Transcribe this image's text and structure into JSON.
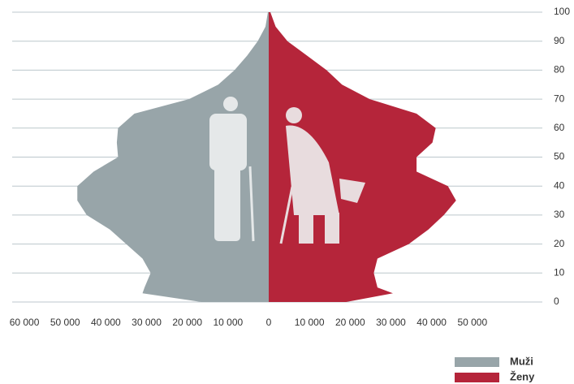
{
  "chart_data": {
    "type": "pyramid",
    "x": [
      0,
      3,
      5,
      10,
      15,
      20,
      25,
      30,
      35,
      40,
      45,
      50,
      55,
      60,
      65,
      70,
      75,
      80,
      85,
      90,
      95,
      100
    ],
    "series": [
      {
        "name": "Muži",
        "color": "#98a5a9",
        "side": "left",
        "values": [
          16500,
          31000,
          30500,
          29000,
          31000,
          35000,
          39000,
          44700,
          47000,
          47000,
          43000,
          37000,
          37300,
          37000,
          33000,
          19600,
          12400,
          8400,
          5300,
          2700,
          800,
          200
        ]
      },
      {
        "name": "Ženy",
        "color": "#b5253a",
        "side": "right",
        "values": [
          19000,
          30500,
          26700,
          25800,
          26700,
          34400,
          39200,
          43000,
          46000,
          44000,
          36300,
          36300,
          40200,
          41000,
          36300,
          24800,
          18000,
          14200,
          9400,
          4600,
          1700,
          400
        ]
      }
    ],
    "xlim": [
      -63000,
      63000
    ],
    "xticks": [
      {
        "value": -60000,
        "label": "60 000"
      },
      {
        "value": -50000,
        "label": "50 000"
      },
      {
        "value": -40000,
        "label": "40 000"
      },
      {
        "value": -30000,
        "label": "30 000"
      },
      {
        "value": -20000,
        "label": "20 000"
      },
      {
        "value": -10000,
        "label": "10 000"
      },
      0,
      {
        "value": 10000,
        "label": "10 000"
      },
      {
        "value": 20000,
        "label": "20 000"
      },
      {
        "value": 30000,
        "label": "30 000"
      },
      {
        "value": 40000,
        "label": "40 000"
      },
      {
        "value": 50000,
        "label": "50 000"
      }
    ],
    "ylim": [
      0,
      100
    ],
    "yticks": [
      0,
      10,
      20,
      30,
      40,
      50,
      60,
      70,
      80,
      90,
      100
    ],
    "grid": true
  }
}
